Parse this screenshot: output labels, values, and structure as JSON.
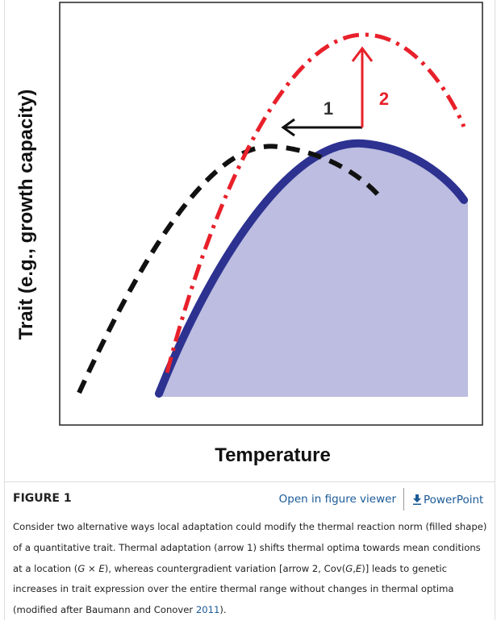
{
  "figure": {
    "y_axis_label": "Trait (e.g., growth capacity)",
    "x_axis_label": "Temperature",
    "arrow_labels": [
      "1",
      "2"
    ]
  },
  "header": {
    "title": "FIGURE 1",
    "viewer_link": "Open in figure viewer",
    "powerpoint_link": "PowerPoint"
  },
  "caption": [
    "Consider two alternative ways local adaptation could modify the thermal reaction norm (filled shape) of a quantitative trait. Thermal adaptation (arrow 1) shifts thermal optima towards mean conditions at a location (",
    "G",
    " × ",
    "E",
    "), whereas countergradient variation [arrow 2, Cov(",
    "G",
    ",",
    "E",
    ")] leads to genetic increases in trait expression over the entire thermal range without changes in thermal optima (modified after Baumann and Conover ",
    "2011",
    ")."
  ]
}
